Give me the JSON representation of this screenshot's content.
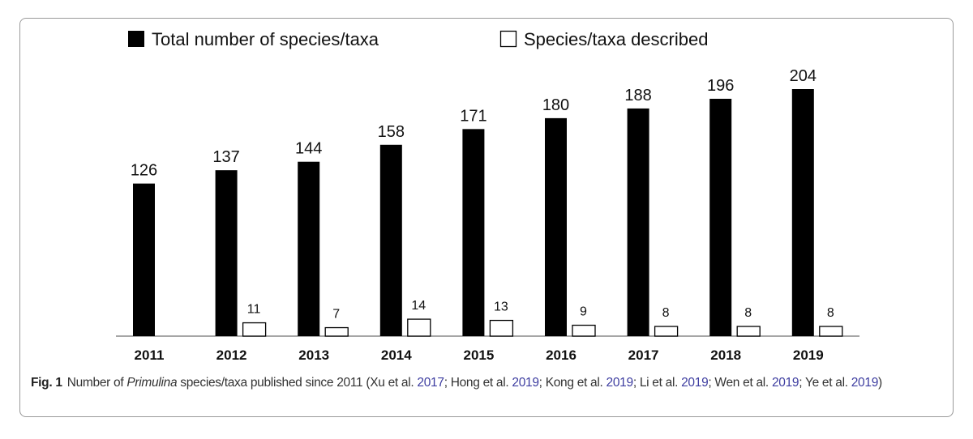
{
  "chart_data": {
    "type": "bar",
    "categories": [
      "2011",
      "2012",
      "2013",
      "2014",
      "2015",
      "2016",
      "2017",
      "2018",
      "2019"
    ],
    "series": [
      {
        "name": "Total number of species/taxa",
        "color": "#000000",
        "values": [
          126,
          137,
          144,
          158,
          171,
          180,
          188,
          196,
          204
        ]
      },
      {
        "name": "Species/taxa described",
        "color": "#ffffff",
        "values": [
          null,
          11,
          7,
          14,
          13,
          9,
          8,
          8,
          8
        ]
      }
    ],
    "legend": "top",
    "grid": false,
    "ylim": [
      0,
      204
    ]
  },
  "caption": {
    "label": "Fig. 1",
    "text_before": "Number of ",
    "italic": "Primulina",
    "text_after": " species/taxa published since 2011 (",
    "refs": [
      {
        "author": "Xu et al. ",
        "year": "2017",
        "sep": "; "
      },
      {
        "author": "Hong et al. ",
        "year": "2019",
        "sep": "; "
      },
      {
        "author": "Kong et al. ",
        "year": "2019",
        "sep": "; "
      },
      {
        "author": "Li et al. ",
        "year": "2019",
        "sep": "; "
      },
      {
        "author": "Wen et al. ",
        "year": "2019",
        "sep": "; "
      },
      {
        "author": "Ye et al. ",
        "year": "2019",
        "sep": ")"
      }
    ]
  }
}
